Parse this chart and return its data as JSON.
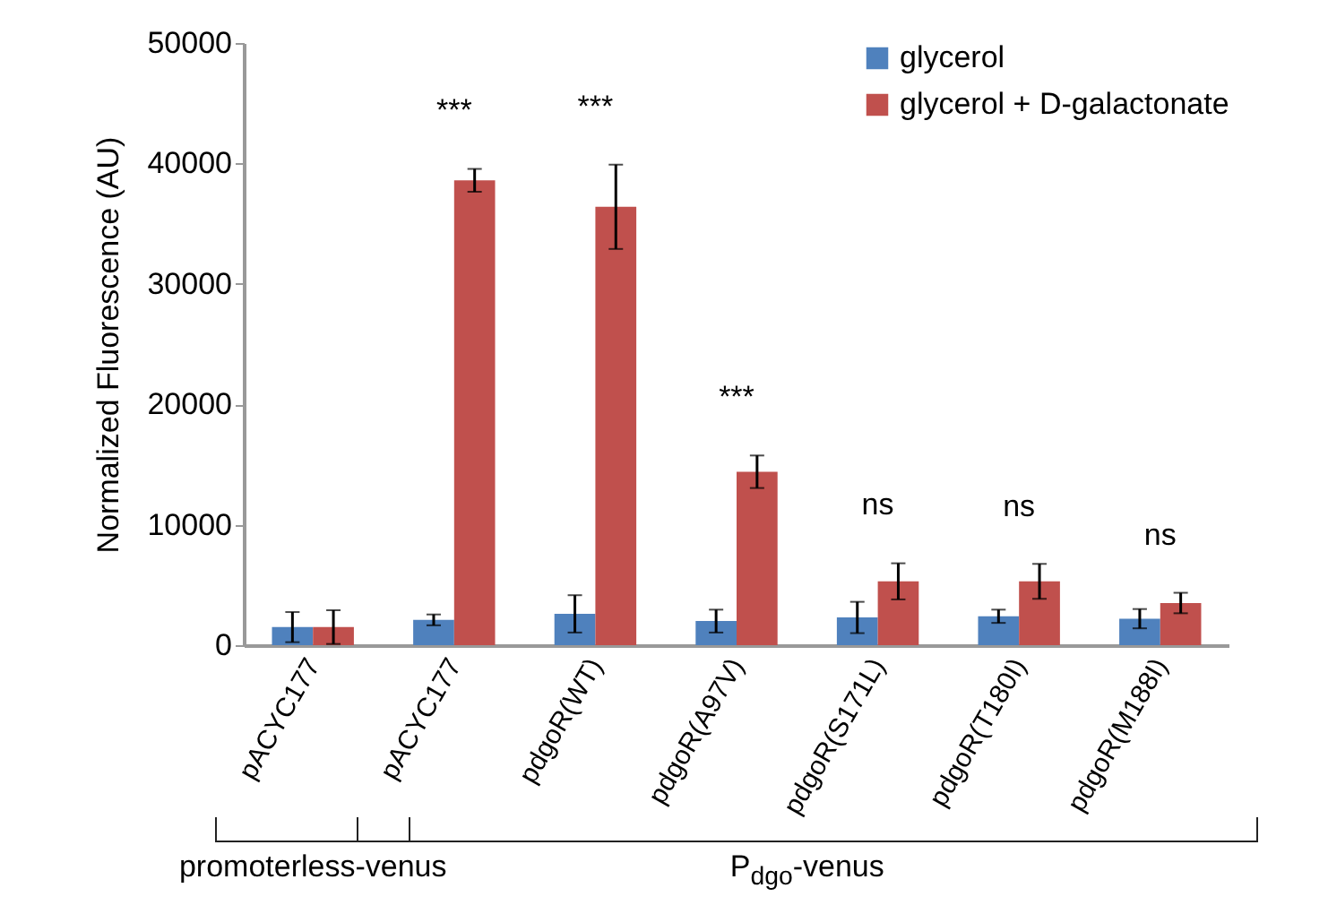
{
  "chart_data": {
    "type": "bar",
    "ylabel": "Normalized Fluorescence (AU)",
    "categories": [
      "pACYC177",
      "pACYC177",
      "pdgoR(WT)",
      "pdgoR(A97V)",
      "pdgoR(S171L)",
      "pdgoR(T180I)",
      "pdgoR(M188I)"
    ],
    "series": [
      {
        "name": "glycerol",
        "color": "#4f81bd",
        "values": [
          1500,
          2100,
          2600,
          2000,
          2300,
          2400,
          2200
        ],
        "errors": [
          1250,
          450,
          1550,
          950,
          1300,
          550,
          800
        ]
      },
      {
        "name": "glycerol + D-galactonate",
        "color": "#c0504d",
        "values": [
          1500,
          38600,
          36400,
          14400,
          5300,
          5300,
          3500
        ],
        "errors": [
          1400,
          950,
          3500,
          1350,
          1500,
          1450,
          850
        ]
      }
    ],
    "ylim": [
      0,
      50000
    ],
    "yticks": [
      0,
      10000,
      20000,
      30000,
      40000,
      50000
    ],
    "grid": false,
    "legend": "top right",
    "annotations": [
      "***",
      "***",
      "***",
      "ns",
      "ns",
      "ns",
      "promoterless-venus",
      "P$_{dgo}$-venus"
    ]
  }
}
